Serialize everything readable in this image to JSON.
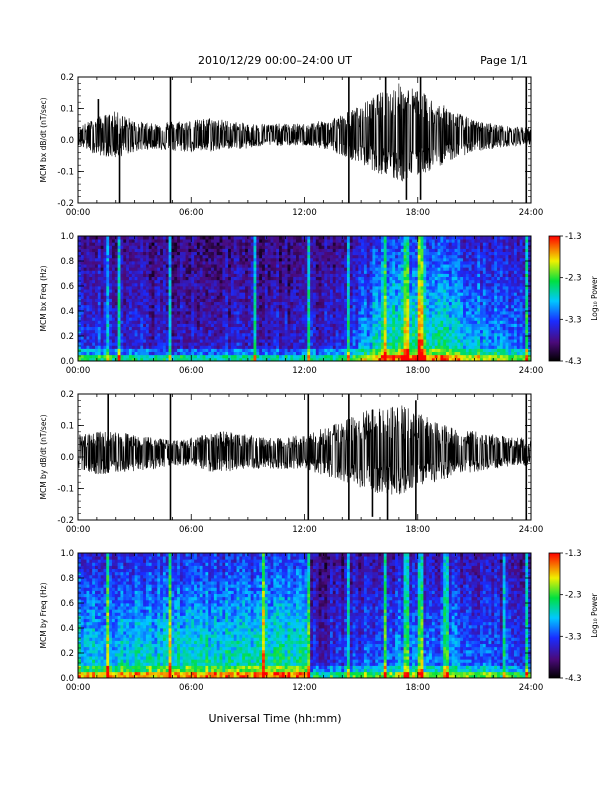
{
  "header": {
    "title": "2010/12/29  00:00–24:00 UT",
    "page": "Page 1/1"
  },
  "x_axis_title": "Universal Time (hh:mm)",
  "chart_data": [
    {
      "type": "line",
      "panel": "MCM bx dB/dt time series",
      "ylabel": "MCM bx dB/dt (nT/sec)",
      "xlabel": "Universal Time (hh:mm)",
      "xlim_hours": [
        0,
        24
      ],
      "x_tick_labels": [
        "00:00",
        "06:00",
        "12:00",
        "18:00",
        "24:00"
      ],
      "ylim": [
        -0.2,
        0.2
      ],
      "y_tick_labels": [
        "-0.2",
        "-0.1",
        "0.0",
        "0.1",
        "0.2"
      ],
      "envelope": {
        "x_hours": [
          0,
          1,
          2,
          3,
          4,
          5,
          6,
          7,
          8,
          9,
          10,
          11,
          12,
          13,
          14,
          15,
          16,
          17,
          18,
          19,
          20,
          21,
          22,
          23,
          24
        ],
        "upper": [
          0.03,
          0.06,
          0.08,
          0.05,
          0.04,
          0.05,
          0.05,
          0.06,
          0.05,
          0.04,
          0.04,
          0.04,
          0.04,
          0.05,
          0.07,
          0.1,
          0.14,
          0.17,
          0.15,
          0.11,
          0.08,
          0.05,
          0.04,
          0.03,
          0.03
        ],
        "lower": [
          -0.03,
          -0.06,
          -0.07,
          -0.05,
          -0.04,
          -0.05,
          -0.05,
          -0.05,
          -0.04,
          -0.04,
          -0.03,
          -0.03,
          -0.03,
          -0.04,
          -0.06,
          -0.09,
          -0.12,
          -0.15,
          -0.13,
          -0.1,
          -0.07,
          -0.05,
          -0.04,
          -0.03,
          -0.03
        ]
      },
      "spikes": [
        {
          "t": 1.08,
          "min": 0.0,
          "max": 0.13
        },
        {
          "t": 2.2,
          "min": -0.2,
          "max": 0.02
        },
        {
          "t": 4.9,
          "min": -0.2,
          "max": 0.2
        },
        {
          "t": 14.35,
          "min": -0.2,
          "max": 0.2
        },
        {
          "t": 16.3,
          "min": -0.1,
          "max": 0.2
        },
        {
          "t": 17.4,
          "min": -0.19,
          "max": 0.12
        },
        {
          "t": 18.15,
          "min": -0.19,
          "max": 0.2
        },
        {
          "t": 23.75,
          "min": -0.2,
          "max": 0.2
        }
      ]
    },
    {
      "type": "heatmap",
      "panel": "MCM bx frequency spectrogram",
      "ylabel": "MCM bx Freq (Hz)",
      "xlabel": "Universal Time (hh:mm)",
      "xlim_hours": [
        0,
        24
      ],
      "x_tick_labels": [
        "00:00",
        "06:00",
        "12:00",
        "18:00",
        "24:00"
      ],
      "ylim": [
        0,
        1.0
      ],
      "y_tick_labels": [
        "0.0",
        "0.2",
        "0.4",
        "0.6",
        "0.8",
        "1.0"
      ],
      "colorbar": {
        "label": "Log₁₀ Power",
        "range": [
          -4.3,
          -1.3
        ],
        "tick_labels": [
          "-1.3",
          "-2.3",
          "-3.3",
          "-4.3"
        ]
      },
      "noise_profile": {
        "x_hours": [
          0,
          2,
          4,
          6,
          8,
          10,
          12,
          14,
          15,
          16,
          17,
          18,
          19,
          20,
          21,
          22,
          23,
          24
        ],
        "level": [
          0.3,
          0.25,
          0.2,
          0.2,
          0.2,
          0.2,
          0.2,
          0.22,
          0.35,
          0.55,
          0.6,
          0.6,
          0.55,
          0.5,
          0.45,
          0.4,
          0.35,
          0.3
        ]
      },
      "vertical_bands": [
        1.6,
        2.2,
        4.9,
        9.4,
        12.2,
        14.35,
        16.3,
        17.4,
        18.15,
        23.75
      ]
    },
    {
      "type": "line",
      "panel": "MCM by dB/dt time series",
      "ylabel": "MCM by dB/dt (nT/sec)",
      "xlabel": "Universal Time (hh:mm)",
      "xlim_hours": [
        0,
        24
      ],
      "x_tick_labels": [
        "00:00",
        "06:00",
        "12:00",
        "18:00",
        "24:00"
      ],
      "ylim": [
        -0.2,
        0.2
      ],
      "y_tick_labels": [
        "-0.2",
        "-0.1",
        "0.0",
        "0.1",
        "0.2"
      ],
      "envelope": {
        "x_hours": [
          0,
          1,
          2,
          3,
          4,
          5,
          6,
          7,
          8,
          9,
          10,
          11,
          12,
          13,
          14,
          15,
          16,
          17,
          18,
          19,
          20,
          21,
          22,
          23,
          24
        ],
        "upper": [
          0.06,
          0.07,
          0.07,
          0.06,
          0.05,
          0.04,
          0.05,
          0.07,
          0.07,
          0.06,
          0.05,
          0.05,
          0.06,
          0.08,
          0.1,
          0.13,
          0.15,
          0.16,
          0.13,
          0.1,
          0.08,
          0.07,
          0.06,
          0.05,
          0.05
        ],
        "lower": [
          -0.05,
          -0.07,
          -0.06,
          -0.06,
          -0.05,
          -0.04,
          -0.04,
          -0.06,
          -0.06,
          -0.05,
          -0.05,
          -0.05,
          -0.05,
          -0.07,
          -0.09,
          -0.11,
          -0.13,
          -0.14,
          -0.11,
          -0.09,
          -0.07,
          -0.06,
          -0.05,
          -0.04,
          -0.04
        ]
      },
      "spikes": [
        {
          "t": 1.6,
          "min": -0.05,
          "max": 0.2
        },
        {
          "t": 4.9,
          "min": -0.2,
          "max": 0.2
        },
        {
          "t": 12.2,
          "min": -0.2,
          "max": 0.2
        },
        {
          "t": 14.35,
          "min": -0.2,
          "max": 0.2
        },
        {
          "t": 15.6,
          "min": -0.19,
          "max": 0.15
        },
        {
          "t": 16.4,
          "min": -0.2,
          "max": 0.1
        },
        {
          "t": 17.9,
          "min": -0.2,
          "max": 0.18
        },
        {
          "t": 23.75,
          "min": -0.2,
          "max": 0.2
        }
      ]
    },
    {
      "type": "heatmap",
      "panel": "MCM by frequency spectrogram",
      "ylabel": "MCM by Freq (Hz)",
      "xlabel": "Universal Time (hh:mm)",
      "xlim_hours": [
        0,
        24
      ],
      "x_tick_labels": [
        "00:00",
        "06:00",
        "12:00",
        "18:00",
        "24:00"
      ],
      "ylim": [
        0,
        1.0
      ],
      "y_tick_labels": [
        "0.0",
        "0.2",
        "0.4",
        "0.6",
        "0.8",
        "1.0"
      ],
      "colorbar": {
        "label": "Log₁₀ Power",
        "range": [
          -4.3,
          -1.3
        ],
        "tick_labels": [
          "-1.3",
          "-2.3",
          "-3.3",
          "-4.3"
        ]
      },
      "noise_profile": {
        "x_hours": [
          0,
          2,
          4,
          6,
          8,
          10,
          12,
          12.2,
          12.3,
          14,
          16,
          18,
          20,
          22,
          24
        ],
        "level": [
          0.5,
          0.5,
          0.52,
          0.52,
          0.54,
          0.55,
          0.56,
          0.56,
          0.22,
          0.25,
          0.35,
          0.4,
          0.38,
          0.3,
          0.28
        ]
      },
      "vertical_bands": [
        1.6,
        4.9,
        9.8,
        12.2,
        14.35,
        16.3,
        17.4,
        18.15,
        19.5,
        22.6,
        23.75
      ]
    }
  ]
}
